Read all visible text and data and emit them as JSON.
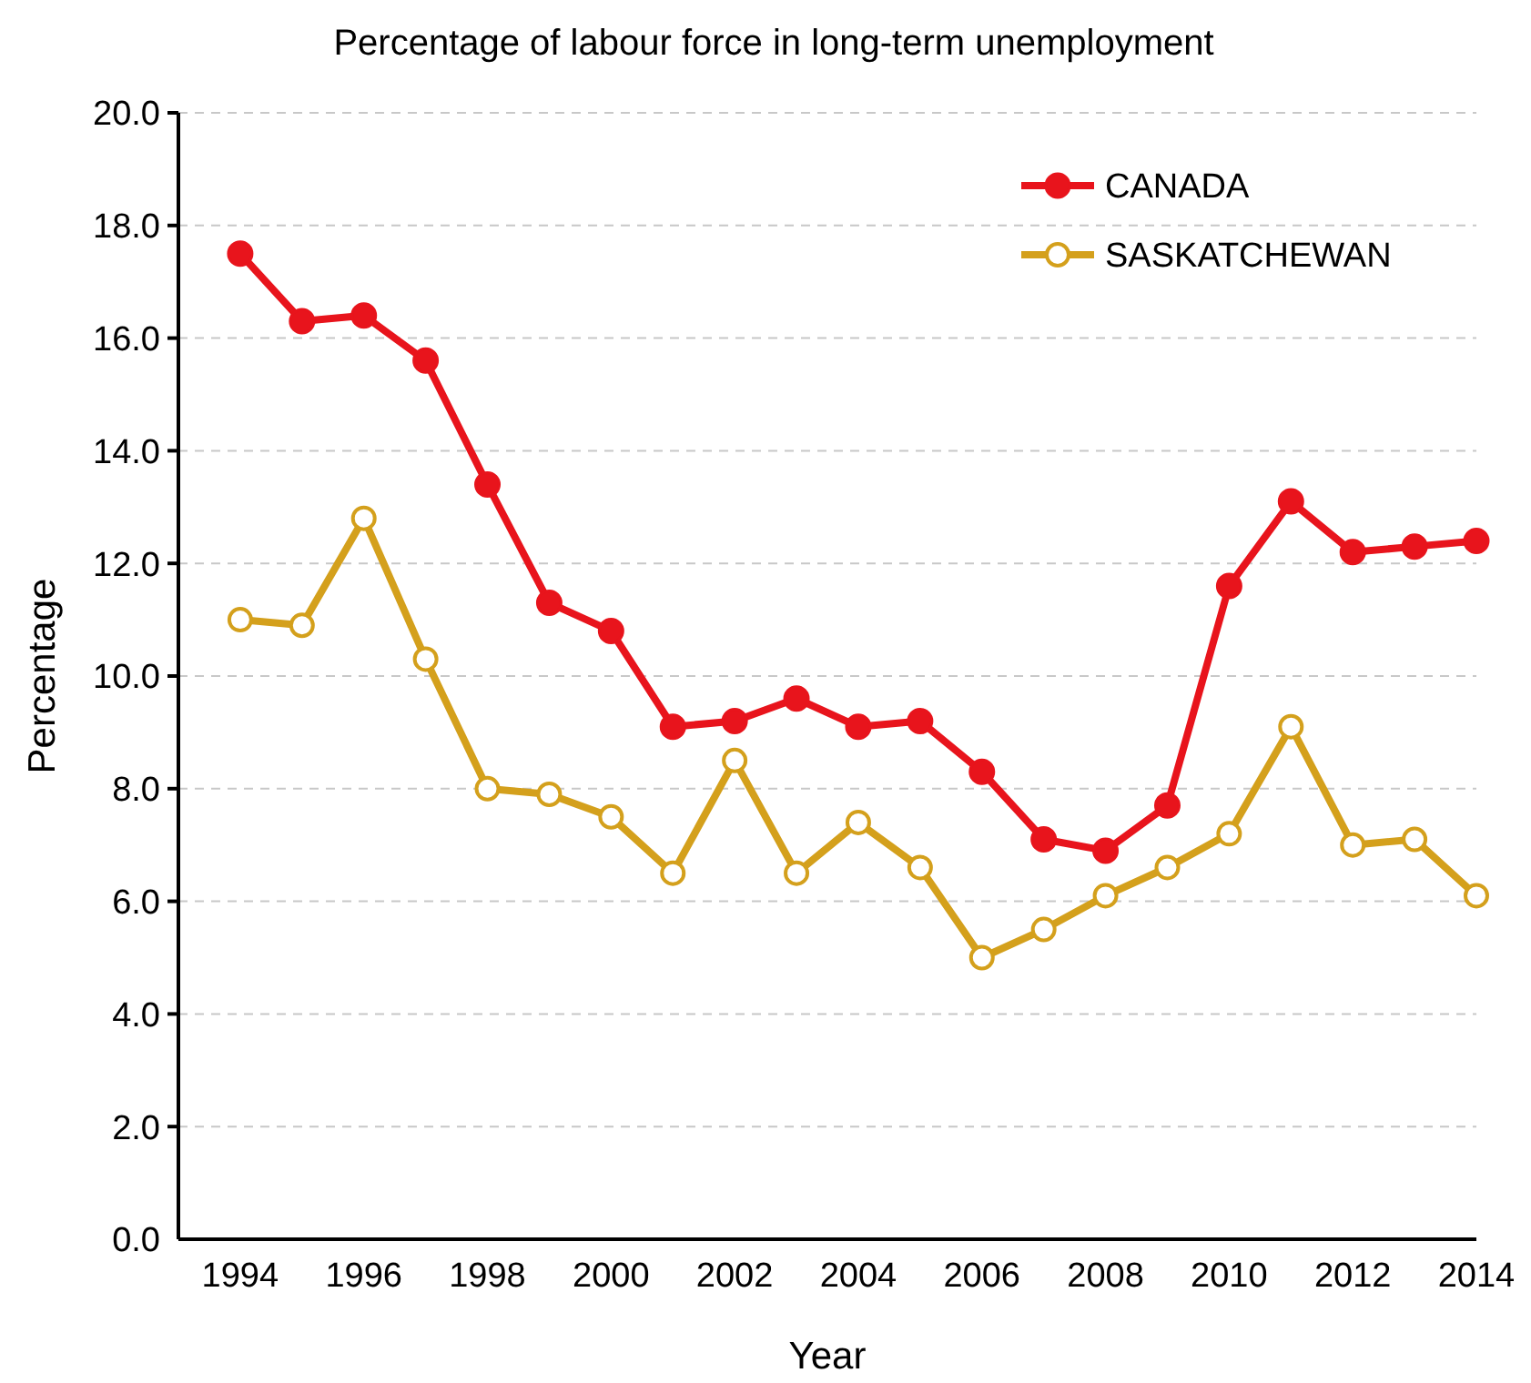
{
  "chart_data": {
    "type": "line",
    "title": "Percentage of labour force in long-term unemployment",
    "xlabel": "Year",
    "ylabel": "Percentage",
    "x": [
      1994,
      1995,
      1996,
      1997,
      1998,
      1999,
      2000,
      2001,
      2002,
      2003,
      2004,
      2005,
      2006,
      2007,
      2008,
      2009,
      2010,
      2011,
      2012,
      2013,
      2014
    ],
    "series": [
      {
        "name": "CANADA",
        "color": "#e8141c",
        "values": [
          17.5,
          16.3,
          16.4,
          15.6,
          13.4,
          11.3,
          10.8,
          9.1,
          9.2,
          9.6,
          9.1,
          9.2,
          8.3,
          7.1,
          6.9,
          7.7,
          11.6,
          13.1,
          12.2,
          12.3,
          12.4
        ]
      },
      {
        "name": "SASKATCHEWAN",
        "color": "#d4a01c",
        "values": [
          11.0,
          10.9,
          12.8,
          10.3,
          8.0,
          7.9,
          7.5,
          6.5,
          8.5,
          6.5,
          7.4,
          6.6,
          5.0,
          5.5,
          6.1,
          6.6,
          7.2,
          9.1,
          7.0,
          7.1,
          6.1
        ]
      }
    ],
    "xlim": [
      1993,
      2014
    ],
    "xticks": [
      1994,
      1996,
      1998,
      2000,
      2002,
      2004,
      2006,
      2008,
      2010,
      2012,
      2014
    ],
    "ylim": [
      0,
      20
    ],
    "yticks": [
      {
        "value": 0,
        "label": "0.0"
      },
      {
        "value": 2,
        "label": "2.0"
      },
      {
        "value": 4,
        "label": "4.0"
      },
      {
        "value": 6,
        "label": "6.0"
      },
      {
        "value": 8,
        "label": "8.0"
      },
      {
        "value": 10,
        "label": "10.0"
      },
      {
        "value": 12,
        "label": "12.0"
      },
      {
        "value": 14,
        "label": "14.0"
      },
      {
        "value": 16,
        "label": "16.0"
      },
      {
        "value": 18,
        "label": "18.0"
      },
      {
        "value": 20,
        "label": "20.0"
      }
    ],
    "grid": "y",
    "legend": "top right",
    "line_style": "solid",
    "marker": "circle"
  }
}
